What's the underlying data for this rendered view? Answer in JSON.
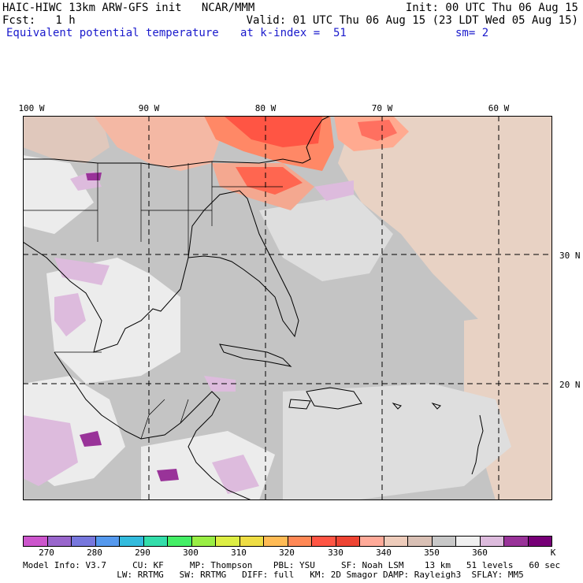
{
  "header": {
    "line1_left": "HAIC-HIWC 13km ARW-GFS init   NCAR/MMM",
    "line1_right": "Init: 00 UTC Thu 06 Aug 15",
    "line2_left": "Fcst:   1 h",
    "line2_right": "Valid: 01 UTC Thu 06 Aug 15 (23 LDT Wed 05 Aug 15)",
    "line3_left": "Equivalent potential temperature",
    "line3_mid": "at k-index =  51",
    "line3_right": "sm= 2"
  },
  "lon_labels": [
    "100 W",
    "90 W",
    "80 W",
    "70 W",
    "60 W"
  ],
  "lat_labels": [
    "30 N",
    "20 N"
  ],
  "colorbar": {
    "colors": [
      "#cc55cc",
      "#9966cc",
      "#7777dd",
      "#5599ee",
      "#33bbdd",
      "#33ddaa",
      "#44ee66",
      "#99ee44",
      "#ddee44",
      "#eedd44",
      "#ffbb55",
      "#ff8855",
      "#ff5544",
      "#ee4433",
      "#ffaa99",
      "#eeccbb",
      "#d9c0b5",
      "#c8c8c8",
      "#f0f0f0",
      "#ddbbdd",
      "#993399",
      "#770077"
    ],
    "ticks": [
      "270",
      "280",
      "290",
      "300",
      "310",
      "320",
      "330",
      "340",
      "350",
      "360"
    ],
    "unit": "K"
  },
  "model_info": {
    "line1": "Model Info: V3.7     CU: KF     MP: Thompson    PBL: YSU     SF: Noah LSM    13 km   51 levels   60 sec",
    "line2": "                  LW: RRTMG   SW: RRTMG   DIFF: full   KM: 2D Smagor DAMP: Rayleigh3  SFLAY: MM5"
  }
}
